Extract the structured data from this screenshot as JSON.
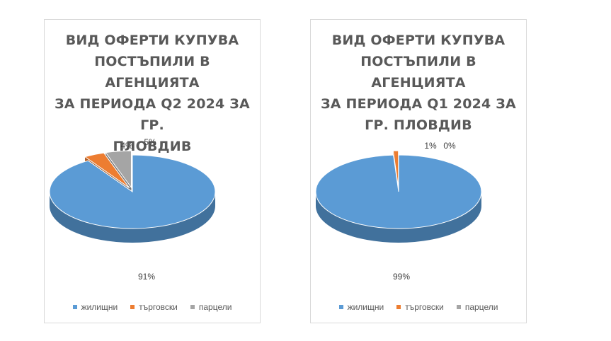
{
  "colors": {
    "blue": "#5b9bd5",
    "orange": "#ed7d31",
    "gray": "#a5a5a5"
  },
  "chart_data": [
    {
      "type": "pie",
      "title": "ВИД ОФЕРТИ КУПУВА\nПОСТЪПИЛИ В АГЕНЦИЯТА\nЗА ПЕРИОДА Q2 2024 ЗА ГР.\nПЛОВДИВ",
      "categories": [
        "жилищни",
        "търговски",
        "парцели"
      ],
      "values": [
        91,
        4,
        5
      ],
      "labels": [
        "91%",
        "4%",
        "5%"
      ],
      "legend_position": "bottom"
    },
    {
      "type": "pie",
      "title": "ВИД ОФЕРТИ КУПУВА\nПОСТЪПИЛИ В АГЕНЦИЯТА\nЗА ПЕРИОДА Q1 2024 ЗА\nГР. ПЛОВДИВ",
      "categories": [
        "жилищни",
        "търговски",
        "парцели"
      ],
      "values": [
        99,
        1,
        0
      ],
      "labels": [
        "99%",
        "1%",
        "0%"
      ],
      "legend_position": "bottom"
    }
  ]
}
